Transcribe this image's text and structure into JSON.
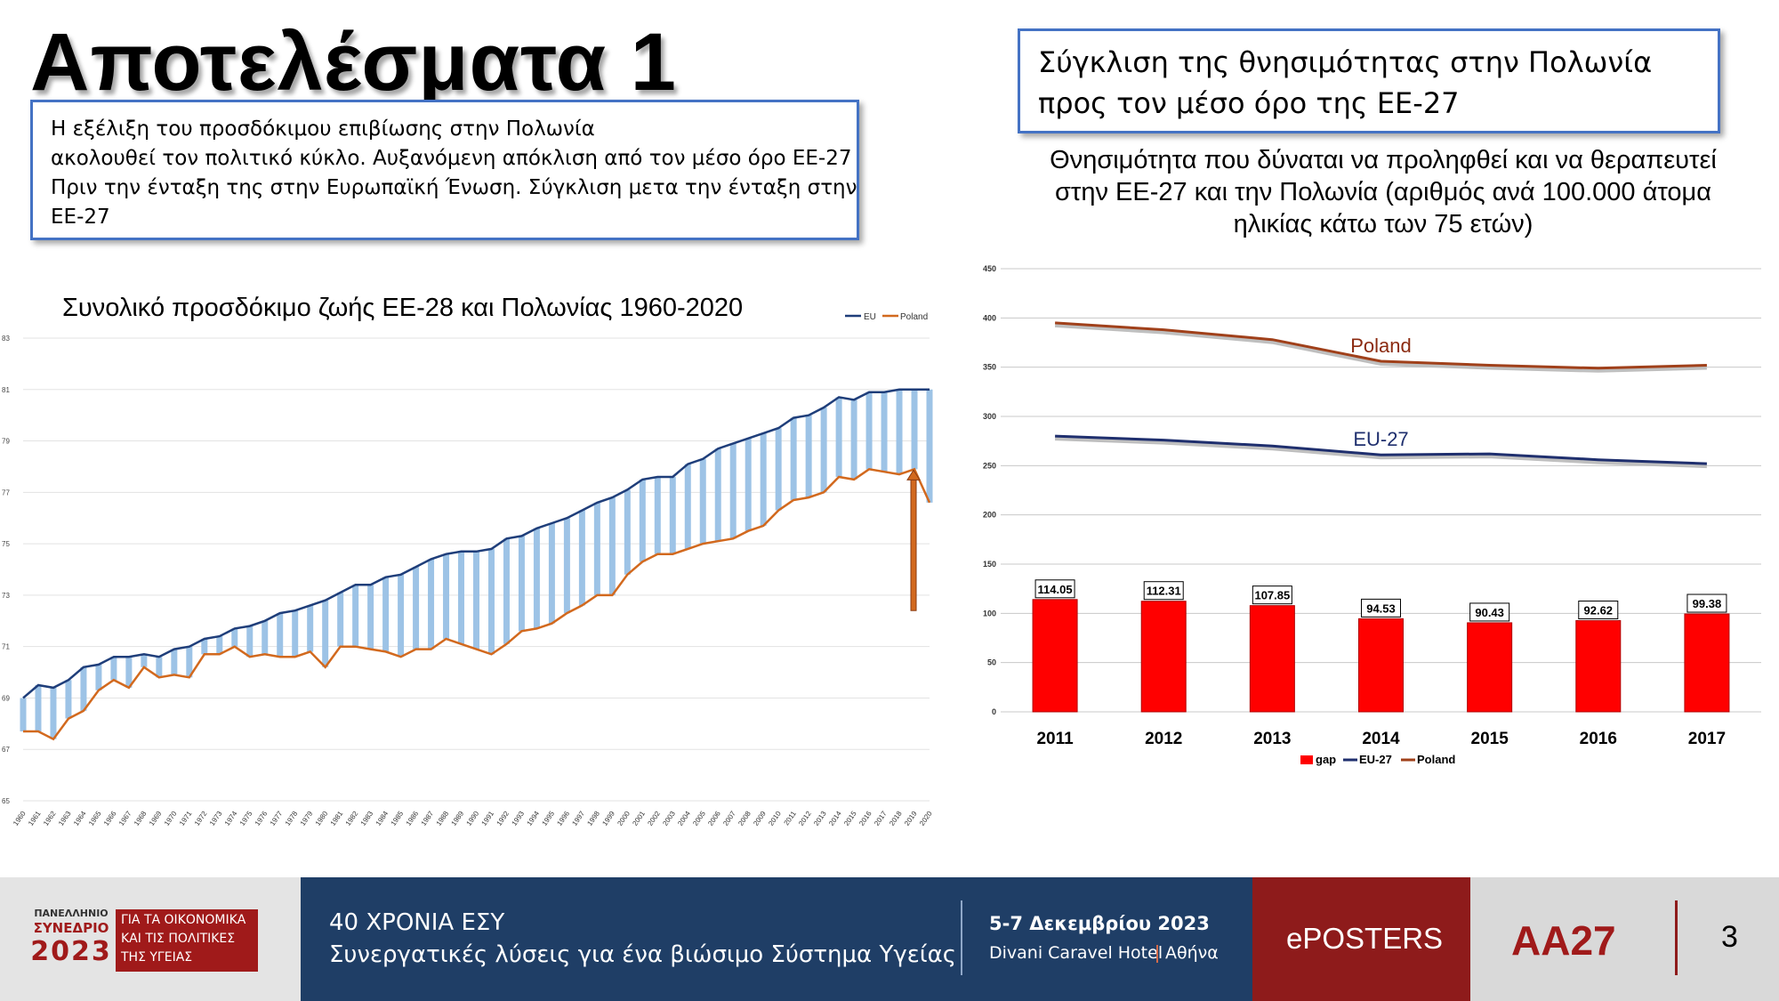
{
  "main_title": "Αποτελέσματα 1",
  "left_box": {
    "lines": [
      "Η εξέλιξη του προσδόκιμου επιβίωσης στην Πολωνία",
      "ακολουθεί τον πολιτικό κύκλο. Αυξανόμενη απόκλιση από τον μέσο όρο ΕΕ-27",
      "Πριν την ένταξη της στην Ευρωπαϊκή Ένωση. Σύγκλιση μετα την ένταξη στην",
      "ΕΕ-27"
    ]
  },
  "right_box": {
    "lines": [
      "Σύγκλιση της θνησιμότητας στην Πολωνία",
      "προς τον μέσο όρο της ΕΕ-27"
    ]
  },
  "right_chart_title": {
    "lines": [
      "Θνησιμότητα που δύναται να προληφθεί και να θεραπευτεί",
      "στην ΕΕ-27 και την Πολωνία (αριθμός ανά 100.000 άτομα",
      "ηλικίας κάτω των 75 ετών)"
    ]
  },
  "colors": {
    "eu_line": "#1f3e7a",
    "poland_line": "#d2691e",
    "gap_bars_left": "#9dc3e6",
    "poland_line_right": "#a0401a",
    "eu_line_right": "#1f2f6e",
    "gap_bar_right": "#ff0000"
  },
  "chart_data": [
    {
      "type": "line",
      "title": "Συνολικό προσδόκιμο ζωής ΕΕ-28 και Πολωνίας 1960-2020",
      "x": [
        "1960",
        "1961",
        "1962",
        "1963",
        "1964",
        "1965",
        "1966",
        "1967",
        "1968",
        "1969",
        "1970",
        "1971",
        "1972",
        "1973",
        "1974",
        "1975",
        "1976",
        "1977",
        "1978",
        "1979",
        "1980",
        "1981",
        "1982",
        "1983",
        "1984",
        "1985",
        "1986",
        "1987",
        "1988",
        "1989",
        "1990",
        "1991",
        "1992",
        "1993",
        "1994",
        "1995",
        "1996",
        "1997",
        "1998",
        "1999",
        "2000",
        "2001",
        "2002",
        "2003",
        "2004",
        "2005",
        "2006",
        "2007",
        "2008",
        "2009",
        "2010",
        "2011",
        "2012",
        "2013",
        "2014",
        "2015",
        "2016",
        "2017",
        "2018",
        "2019",
        "2020"
      ],
      "series": [
        {
          "name": "EU",
          "values": [
            69.0,
            69.5,
            69.4,
            69.7,
            70.2,
            70.3,
            70.6,
            70.6,
            70.7,
            70.6,
            70.9,
            71.0,
            71.3,
            71.4,
            71.7,
            71.8,
            72.0,
            72.3,
            72.4,
            72.6,
            72.8,
            73.1,
            73.4,
            73.4,
            73.7,
            73.8,
            74.1,
            74.4,
            74.6,
            74.7,
            74.7,
            74.8,
            75.2,
            75.3,
            75.6,
            75.8,
            76.0,
            76.3,
            76.6,
            76.8,
            77.1,
            77.5,
            77.6,
            77.6,
            78.1,
            78.3,
            78.7,
            78.9,
            79.1,
            79.3,
            79.5,
            79.9,
            80.0,
            80.3,
            80.7,
            80.6,
            80.9,
            80.9,
            81.0,
            81.0,
            81.0
          ]
        },
        {
          "name": "Poland",
          "values": [
            67.7,
            67.7,
            67.4,
            68.2,
            68.5,
            69.3,
            69.7,
            69.4,
            70.2,
            69.8,
            69.9,
            69.8,
            70.7,
            70.7,
            71.0,
            70.6,
            70.7,
            70.6,
            70.6,
            70.8,
            70.2,
            71.0,
            71.0,
            70.9,
            70.8,
            70.6,
            70.9,
            70.9,
            71.3,
            71.1,
            70.9,
            70.7,
            71.1,
            71.6,
            71.7,
            71.9,
            72.3,
            72.6,
            73.0,
            73.0,
            73.8,
            74.3,
            74.6,
            74.6,
            74.8,
            75.0,
            75.1,
            75.2,
            75.5,
            75.7,
            76.3,
            76.7,
            76.8,
            77.0,
            77.6,
            77.5,
            77.9,
            77.8,
            77.7,
            77.9,
            76.6
          ]
        }
      ],
      "ylim": [
        65,
        83
      ],
      "yticks": [
        "65",
        "67",
        "69",
        "71",
        "73",
        "75",
        "77",
        "79",
        "81",
        "83"
      ],
      "legend": [
        "EU",
        "Poland"
      ],
      "legend_position": "top-right",
      "grid": true,
      "annotation": "upward arrow at 2019"
    },
    {
      "type": "bar",
      "categories": [
        "2011",
        "2012",
        "2013",
        "2014",
        "2015",
        "2016",
        "2017"
      ],
      "series": [
        {
          "name": "gap",
          "values": [
            114.05,
            112.31,
            107.85,
            94.53,
            90.43,
            92.62,
            99.38
          ],
          "labels": [
            "114.05",
            "112.31",
            "107.85",
            "94.53",
            "90.43",
            "92.62",
            "99.38"
          ]
        },
        {
          "name": "EU-27",
          "type": "line",
          "values": [
            280,
            276,
            270,
            261,
            262,
            256,
            252
          ]
        },
        {
          "name": "Poland",
          "type": "line",
          "values": [
            395,
            388,
            378,
            356,
            352,
            349,
            352
          ]
        }
      ],
      "line_labels": [
        "Poland",
        "EU-27"
      ],
      "ylim": [
        0,
        450
      ],
      "yticks": [
        "0",
        "50",
        "100",
        "150",
        "200",
        "250",
        "300",
        "350",
        "400",
        "450"
      ],
      "legend": [
        "gap",
        "EU-27",
        "Poland"
      ],
      "legend_position": "bottom",
      "grid": true
    }
  ],
  "footer": {
    "logo": {
      "line1": "ΠΑΝΕΛΛΗΝΙΟ",
      "line2": "ΣΥΝΕΔΡΙΟ",
      "year": "2023",
      "side1": "ΓΙΑ ΤΑ ΟΙΚΟΝΟΜΙΚΑ",
      "side2": "ΚΑΙ ΤΙΣ ΠΟΛΙΤΙΚΕΣ",
      "side3": "ΤΗΣ ΥΓΕΙΑΣ"
    },
    "title1": "40 ΧΡΟΝΙΑ ΕΣΥ",
    "title2": "Συνεργατικές λύσεις για ένα βιώσιμο Σύστημα Υγείας",
    "date": "5-7 Δεκεμβρίου 2023",
    "venue": "Divani Caravel Hotel",
    "city": "Αθήνα",
    "eposters": "ePOSTERS",
    "code": "AA27",
    "page": "3"
  }
}
